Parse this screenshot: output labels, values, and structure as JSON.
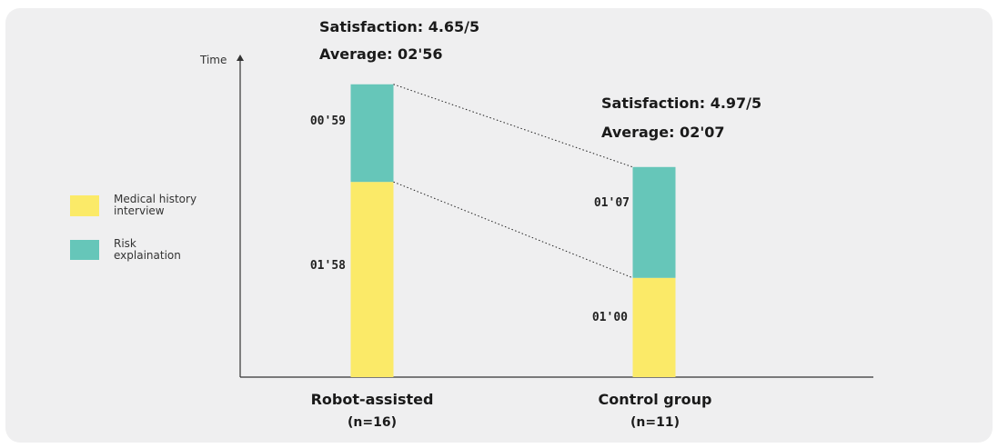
{
  "chart_data": {
    "type": "bar",
    "stacked": true,
    "ylabel": "Time",
    "xlabel": "",
    "ylim_seconds": [
      0,
      195
    ],
    "categories": [
      {
        "label": "Robot-assisted",
        "n": "(n=16)",
        "satisfaction": "Satisfaction: 4.65/5",
        "average": "Average: 02'56"
      },
      {
        "label": "Control group",
        "n": "(n=11)",
        "satisfaction": "Satisfaction: 4.97/5",
        "average": "Average: 02'07"
      }
    ],
    "series": [
      {
        "name": "Medical history interview",
        "color": "#fbea68",
        "values_seconds": [
          118,
          60
        ],
        "labels": [
          "01'58",
          "01'00"
        ]
      },
      {
        "name": "Risk explaination",
        "color": "#66c6b9",
        "values_seconds": [
          59,
          67
        ],
        "labels": [
          "00'59",
          "01'07"
        ]
      }
    ],
    "legend": {
      "position": "left"
    },
    "connectors": "dotted",
    "grid": false
  },
  "colors": {
    "background": "#efeff0",
    "axis": "#333333"
  }
}
